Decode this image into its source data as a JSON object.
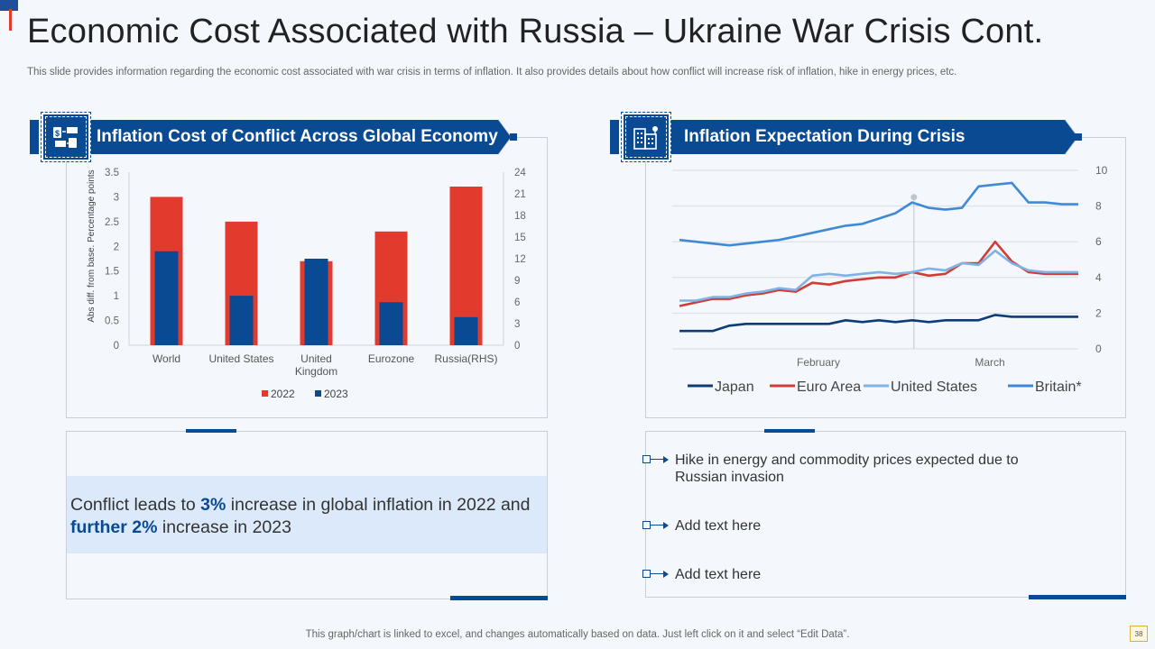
{
  "header": {
    "title": "Economic Cost Associated with Russia – Ukraine War Crisis Cont.",
    "subtitle": "This slide provides information regarding the economic cost associated with war crisis in terms of inflation. It also provides details about how conflict will increase risk of inflation, hike in energy prices, etc."
  },
  "left_panel": {
    "banner_title": "Inflation Cost of Conflict Across Global Economy",
    "icon": "money-transfer-icon",
    "callout": {
      "p1": "Conflict leads to ",
      "hl1": "3%",
      "p2": " increase in global inflation in 2022 and ",
      "hl2": "further 2%",
      "p3": " increase in 2023"
    }
  },
  "right_panel": {
    "banner_title": "Inflation Expectation During Crisis",
    "icon": "city-buildings-icon",
    "bullets": [
      "Hike in energy and commodity prices expected due to Russian invasion",
      "Add text here",
      "Add text here"
    ]
  },
  "colors": {
    "brand_blue": "#0a4a93",
    "red": "#e23b2e",
    "japan": "#0d3d78",
    "euro_area": "#d23c36",
    "united_states": "#7fb2e5",
    "britain": "#3f8ad6"
  },
  "chart_data": [
    {
      "type": "bar",
      "title": "Inflation Cost of Conflict Across Global Economy",
      "ylabel": "Abs diff. from base. Percentage points",
      "categories": [
        "World",
        "United States",
        "United Kingdom",
        "Eurozone",
        "Russia(RHS)"
      ],
      "category_lines": [
        [
          "World"
        ],
        [
          "United States"
        ],
        [
          "United",
          "Kingdom"
        ],
        [
          "Eurozone"
        ],
        [
          "Russia(RHS)"
        ]
      ],
      "ylim": [
        0,
        3.5
      ],
      "y_ticks": [
        "0",
        "0.5",
        "1",
        "1.5",
        "2",
        "2.5",
        "3",
        "3.5"
      ],
      "y2lim": [
        0,
        24
      ],
      "y2_ticks": [
        "0",
        "3",
        "6",
        "9",
        "12",
        "15",
        "18",
        "21",
        "24"
      ],
      "series": [
        {
          "name": "2022",
          "color": "#e23b2e",
          "values": [
            3.0,
            2.5,
            1.7,
            2.3,
            22.0
          ],
          "axes": [
            "left",
            "left",
            "left",
            "left",
            "right"
          ]
        },
        {
          "name": "2023",
          "color": "#0a4a93",
          "values": [
            1.9,
            1.0,
            1.75,
            0.87,
            3.9
          ],
          "axes": [
            "left",
            "left",
            "left",
            "left",
            "right"
          ]
        }
      ],
      "legend": "bottom"
    },
    {
      "type": "line",
      "title": "Inflation Expectation During Crisis",
      "x_labels": [
        "February",
        "March"
      ],
      "ylim": [
        0,
        10
      ],
      "y_ticks": [
        "0",
        "2",
        "4",
        "6",
        "8",
        "10"
      ],
      "y_axis_side": "right",
      "legend": "bottom",
      "series": [
        {
          "name": "Japan",
          "color": "#0d3d78",
          "values": [
            1.0,
            1.0,
            1.0,
            1.3,
            1.4,
            1.4,
            1.4,
            1.4,
            1.4,
            1.4,
            1.6,
            1.5,
            1.6,
            1.5,
            1.6,
            1.5,
            1.6,
            1.6,
            1.6,
            1.9,
            1.8,
            1.8,
            1.8,
            1.8,
            1.8
          ]
        },
        {
          "name": "Euro Area",
          "color": "#d23c36",
          "values": [
            2.4,
            2.6,
            2.8,
            2.8,
            3.0,
            3.1,
            3.3,
            3.2,
            3.7,
            3.6,
            3.8,
            3.9,
            4.0,
            4.0,
            4.3,
            4.1,
            4.2,
            4.8,
            4.8,
            6.0,
            4.9,
            4.3,
            4.2,
            4.2,
            4.2
          ]
        },
        {
          "name": "United States",
          "color": "#7fb2e5",
          "values": [
            2.7,
            2.7,
            2.9,
            2.9,
            3.1,
            3.2,
            3.4,
            3.3,
            4.1,
            4.2,
            4.1,
            4.2,
            4.3,
            4.2,
            4.3,
            4.5,
            4.4,
            4.8,
            4.7,
            5.5,
            4.8,
            4.4,
            4.3,
            4.3,
            4.3
          ]
        },
        {
          "name": "Britain*",
          "color": "#3f8ad6",
          "values": [
            6.1,
            6.0,
            5.9,
            5.8,
            5.9,
            6.0,
            6.1,
            6.3,
            6.5,
            6.7,
            6.9,
            7.0,
            7.3,
            7.6,
            8.2,
            7.9,
            7.8,
            7.9,
            9.1,
            9.2,
            9.3,
            8.2,
            8.2,
            8.1,
            8.1
          ]
        }
      ]
    }
  ],
  "footer": {
    "note": "This graph/chart is linked to excel, and changes automatically based on data. Just left click on it and select “Edit Data”.",
    "page_number": "38"
  }
}
